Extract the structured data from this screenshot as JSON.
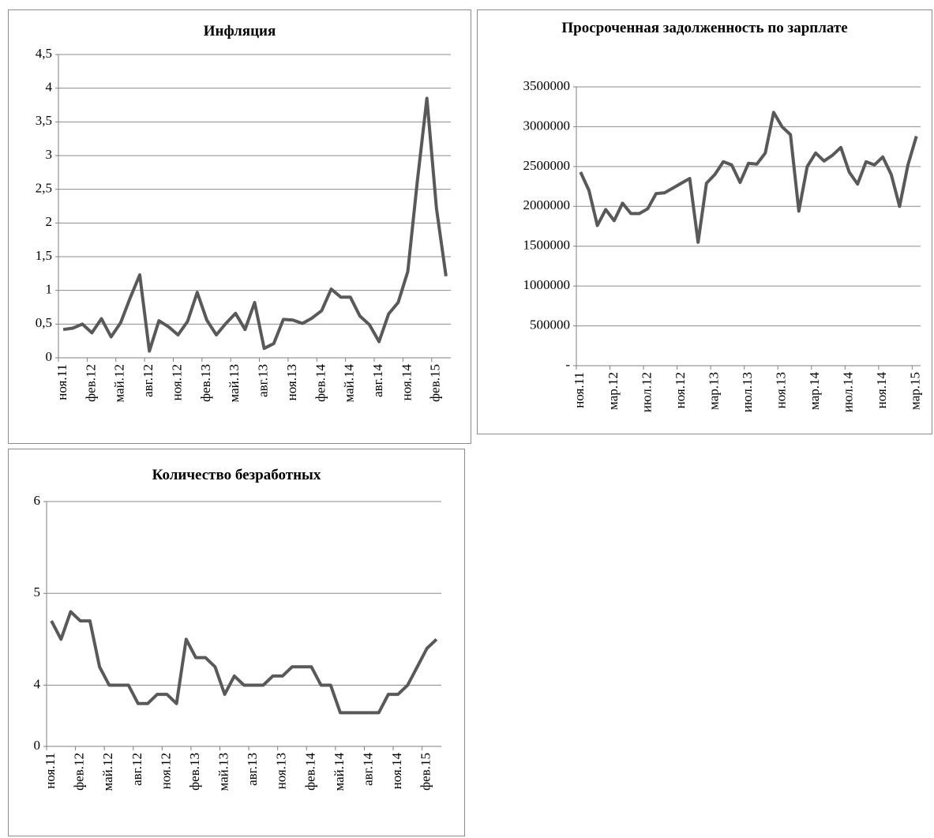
{
  "chart_data": [
    {
      "type": "line",
      "title": "Инфляция",
      "categories": [
        "ноя.11",
        null,
        null,
        "фев.12",
        null,
        null,
        "май.12",
        null,
        null,
        "авг.12",
        null,
        null,
        "ноя.12",
        null,
        null,
        "фев.13",
        null,
        null,
        "май.13",
        null,
        null,
        "авг.13",
        null,
        null,
        "ноя.13",
        null,
        null,
        "фев.14",
        null,
        null,
        "май.14",
        null,
        null,
        "авг.14",
        null,
        null,
        "ноя.14",
        null,
        null,
        "фев.15",
        null
      ],
      "values": [
        0.42,
        0.44,
        0.5,
        0.37,
        0.58,
        0.31,
        0.52,
        0.89,
        1.23,
        0.1,
        0.55,
        0.46,
        0.34,
        0.54,
        0.97,
        0.56,
        0.34,
        0.51,
        0.66,
        0.42,
        0.82,
        0.14,
        0.21,
        0.57,
        0.56,
        0.51,
        0.59,
        0.7,
        1.02,
        0.9,
        0.9,
        0.62,
        0.49,
        0.24,
        0.65,
        0.82,
        1.28,
        2.62,
        3.85,
        2.22,
        1.21
      ],
      "color": "#595959",
      "ylim": [
        0,
        4.5
      ],
      "yticks": [
        0,
        {
          "value": 0.5,
          "label": "0,5"
        },
        1,
        {
          "value": 1.5,
          "label": "1,5"
        },
        2,
        {
          "value": 2.5,
          "label": "2,5"
        },
        3,
        {
          "value": 3.5,
          "label": "3,5"
        },
        4,
        {
          "value": 4.5,
          "label": "4,5"
        }
      ],
      "grid": true
    },
    {
      "type": "line",
      "title": "Просроченная задолженность по зарплате",
      "categories": [
        "ноя.11",
        null,
        null,
        null,
        "мар.12",
        null,
        null,
        null,
        "июл.12",
        null,
        null,
        null,
        "ноя.12",
        null,
        null,
        null,
        "мар.13",
        null,
        null,
        null,
        "июл.13",
        null,
        null,
        null,
        "ноя.13",
        null,
        null,
        null,
        "мар.14",
        null,
        null,
        null,
        "июл.14",
        null,
        null,
        null,
        "ноя.14",
        null,
        null,
        null,
        "мар.15"
      ],
      "values": [
        2430000,
        2200000,
        1760000,
        1960000,
        1820000,
        2040000,
        1910000,
        1910000,
        1970000,
        2160000,
        2170000,
        2230000,
        2290000,
        2350000,
        1550000,
        2290000,
        2400000,
        2560000,
        2520000,
        2300000,
        2540000,
        2530000,
        2670000,
        3180000,
        3000000,
        2900000,
        1940000,
        2500000,
        2670000,
        2570000,
        2640000,
        2740000,
        2430000,
        2280000,
        2560000,
        2520000,
        2620000,
        2400000,
        2000000,
        2520000,
        2880000
      ],
      "color": "#595959",
      "ylim": [
        0,
        3500000
      ],
      "yticks": [
        {
          "value": 0,
          "label": "-"
        },
        500000,
        1000000,
        1500000,
        2000000,
        2500000,
        3000000,
        3500000
      ],
      "grid": true
    },
    {
      "type": "line",
      "title": "Количество безработных",
      "categories": [
        "ноя.11",
        null,
        null,
        "фев.12",
        null,
        null,
        "май.12",
        null,
        null,
        "авг.12",
        null,
        null,
        "ноя.12",
        null,
        null,
        "фев.13",
        null,
        null,
        "май.13",
        null,
        null,
        "авг.13",
        null,
        null,
        "ноя.13",
        null,
        null,
        "фев.14",
        null,
        null,
        "май.14",
        null,
        null,
        "авг.14",
        null,
        null,
        "ноя.14",
        null,
        null,
        "фев.15",
        null
      ],
      "values": [
        4.7,
        4.5,
        4.8,
        4.7,
        4.7,
        4.2,
        4.0,
        4.0,
        4.0,
        3.8,
        3.8,
        3.9,
        3.9,
        3.8,
        4.5,
        4.3,
        4.3,
        4.2,
        3.9,
        4.1,
        4.0,
        4.0,
        4.0,
        4.1,
        4.1,
        4.2,
        4.2,
        4.2,
        4.0,
        4.0,
        3.7,
        3.7,
        3.7,
        3.7,
        3.7,
        3.9,
        3.9,
        4.0,
        4.2,
        4.4,
        4.5
      ],
      "color": "#595959",
      "ylim": [
        0,
        6
      ],
      "yticks": [
        0,
        4,
        5,
        6
      ],
      "y_axis_break": true,
      "grid": true
    }
  ]
}
